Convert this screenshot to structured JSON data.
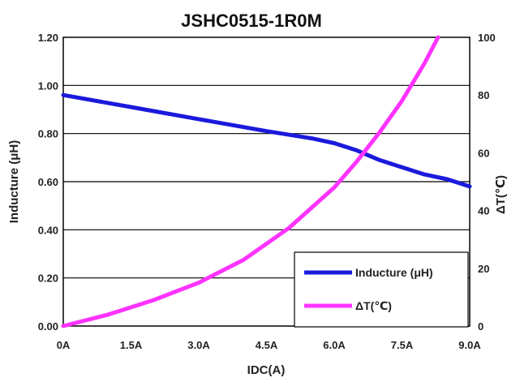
{
  "chart_data": {
    "type": "line",
    "title": "JSHC0515-1R0M",
    "xlabel": "IDC(A)",
    "ylabel": "Inducture (μH)",
    "y2label": "ΔT(℃)",
    "xlim": [
      0,
      9
    ],
    "ylim": [
      0,
      1.2
    ],
    "y2lim": [
      0,
      100
    ],
    "x_ticks": [
      0,
      1.5,
      3,
      4.5,
      6,
      7.5,
      9
    ],
    "x_tick_labels": [
      "0A",
      "1.5A",
      "3.0A",
      "4.5A",
      "6.0A",
      "7.5A",
      "9.0A"
    ],
    "y_ticks": [
      0,
      0.2,
      0.4,
      0.6,
      0.8,
      1.0,
      1.2
    ],
    "y_tick_labels": [
      "0.00",
      "0.20",
      "0.40",
      "0.60",
      "0.80",
      "1.00",
      "1.20"
    ],
    "y2_ticks": [
      0,
      20,
      40,
      60,
      80,
      100
    ],
    "y2_tick_labels": [
      "0",
      "20",
      "40",
      "60",
      "80",
      "100"
    ],
    "grid": "horizontal",
    "legend_position": "bottom-right",
    "series": [
      {
        "name": "Inducture (μH)",
        "axis": "left",
        "color": "#1a1adc",
        "x": [
          0,
          1.5,
          3,
          4.5,
          5.5,
          6,
          6.5,
          7,
          7.5,
          8,
          8.5,
          9
        ],
        "y": [
          0.96,
          0.91,
          0.86,
          0.81,
          0.78,
          0.76,
          0.73,
          0.69,
          0.66,
          0.63,
          0.61,
          0.58
        ]
      },
      {
        "name": "ΔT(℃)",
        "axis": "right",
        "color": "#ff33ff",
        "x": [
          0,
          1,
          2,
          3,
          4,
          5,
          6,
          6.5,
          7,
          7.5,
          8,
          8.3
        ],
        "y": [
          0,
          4,
          9,
          15,
          23,
          34,
          48,
          57,
          67,
          78,
          91,
          100
        ]
      }
    ]
  }
}
